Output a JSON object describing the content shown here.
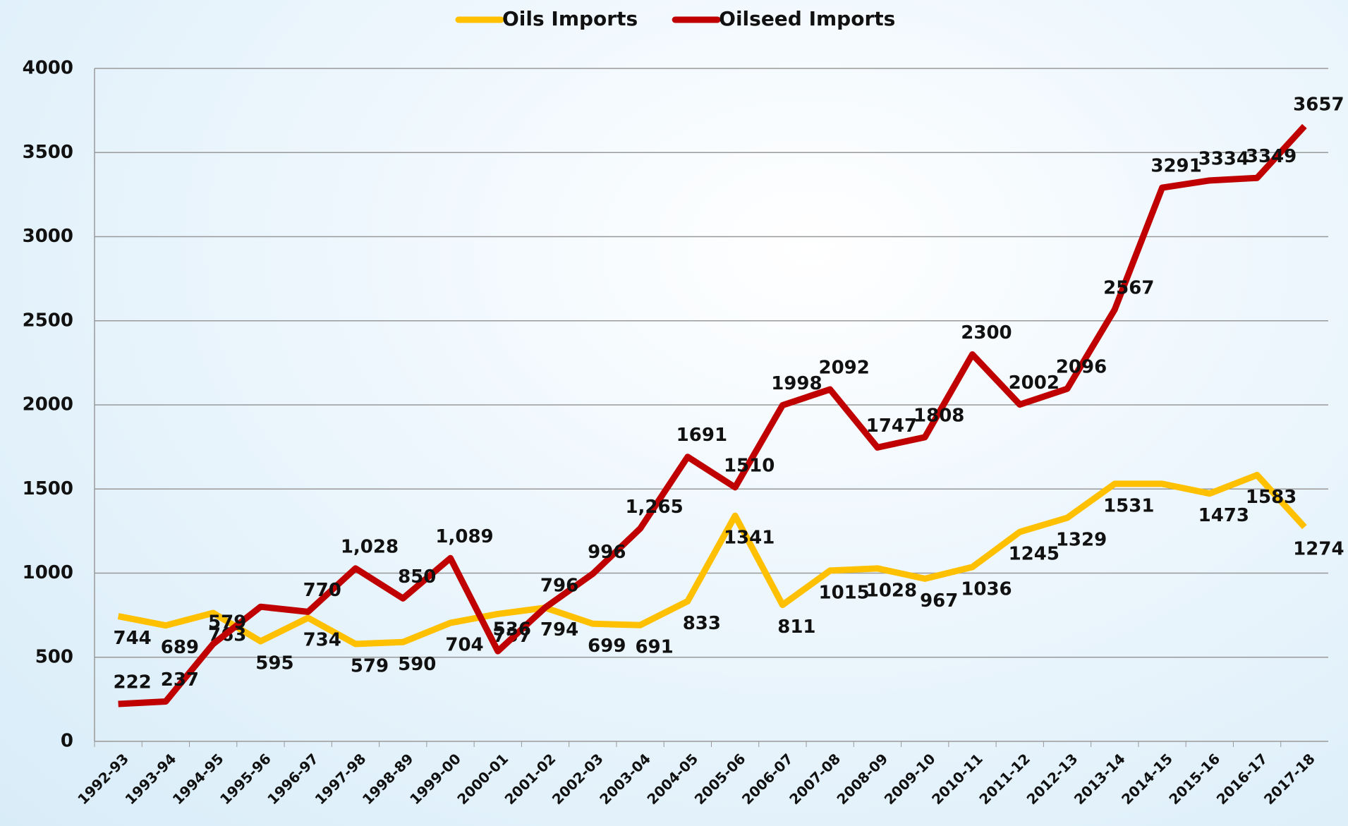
{
  "chart_data": {
    "type": "line",
    "categories": [
      "1992-93",
      "1993-94",
      "1994-95",
      "1995-96",
      "1996-97",
      "1997-98",
      "1998-89",
      "1999-00",
      "2000-01",
      "2001-02",
      "2002-03",
      "2003-04",
      "2004-05",
      "2005-06",
      "2006-07",
      "2007-08",
      "2008-09",
      "2009-10",
      "2010-11",
      "2011-12",
      "2012-13",
      "2013-14",
      "2014-15",
      "2015-16",
      "2016-17",
      "2017-18"
    ],
    "series": [
      {
        "name": "Oils Imports",
        "color": "#ffc000",
        "values": [
          744,
          689,
          763,
          595,
          734,
          579,
          590,
          704,
          757,
          794,
          699,
          691,
          833,
          1341,
          811,
          1015,
          1028,
          967,
          1036,
          1245,
          1329,
          1531,
          1531,
          1473,
          1583,
          1274
        ],
        "value_labels": [
          "744",
          "689",
          "763",
          "595",
          "734",
          "579",
          "590",
          "704",
          "757",
          "794",
          "699",
          "691",
          "833",
          "1341",
          "811",
          "1015",
          "1028",
          "967",
          "1036",
          "1245",
          "1329",
          "1531",
          null,
          "1473",
          "1583",
          "1274"
        ]
      },
      {
        "name": "Oilseed Imports",
        "color": "#c00000",
        "values": [
          222,
          237,
          579,
          800,
          770,
          1028,
          850,
          1089,
          536,
          796,
          996,
          1265,
          1691,
          1510,
          1998,
          2092,
          1747,
          1808,
          2300,
          2002,
          2096,
          2567,
          3291,
          3334,
          3349,
          3657
        ],
        "value_labels": [
          "222",
          "237",
          "579",
          null,
          "770",
          "1,028",
          "850",
          "1,089",
          "536",
          "796",
          "996",
          "1,265",
          "1691",
          "1510",
          "1998",
          "2092",
          "1747",
          "1808",
          "2300",
          "2002",
          "2096",
          "2567",
          "3291",
          "3334",
          "3349",
          "3657"
        ]
      }
    ],
    "ylim": [
      0,
      4000
    ],
    "yticks": [
      0,
      500,
      1000,
      1500,
      2000,
      2500,
      3000,
      3500,
      4000
    ],
    "grid": true,
    "legend": "top"
  }
}
